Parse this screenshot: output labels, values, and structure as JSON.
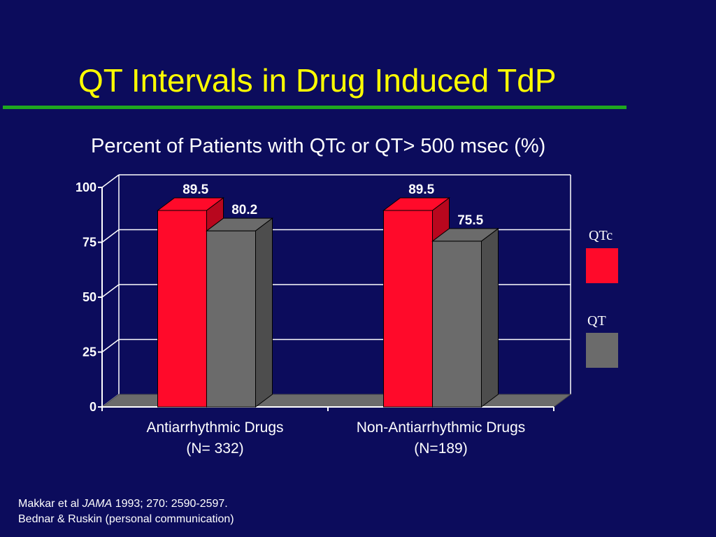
{
  "slide": {
    "title": "QT Intervals in Drug Induced TdP",
    "accent_color": "#1fa81f",
    "background_color": "#0c0c5c",
    "title_color": "#ffff00"
  },
  "chart_data": {
    "type": "bar",
    "style": "3d",
    "title": "Percent of Patients with QTc or QT> 500 msec (%)",
    "categories": [
      "Antiarrhythmic Drugs",
      "Non-Antiarrhythmic Drugs"
    ],
    "category_sublabels": [
      "(N= 332)",
      "(N=189)"
    ],
    "series": [
      {
        "name": "QTc",
        "values": [
          89.5,
          89.5
        ],
        "color": "#ff0a2a"
      },
      {
        "name": "QT",
        "values": [
          80.2,
          75.5
        ],
        "color": "#6b6b6b"
      }
    ],
    "data_labels": [
      "89.5",
      "80.2",
      "89.5",
      "75.5"
    ],
    "ylim": [
      0,
      100
    ],
    "yticks": [
      0,
      25,
      50,
      75,
      100
    ],
    "grid": true,
    "legend_position": "right"
  },
  "citation": {
    "line1_prefix": "Makkar et al ",
    "line1_journal": "JAMA",
    "line1_suffix": " 1993; 270: 2590-2597.",
    "line2": "Bednar & Ruskin (personal communication)"
  }
}
